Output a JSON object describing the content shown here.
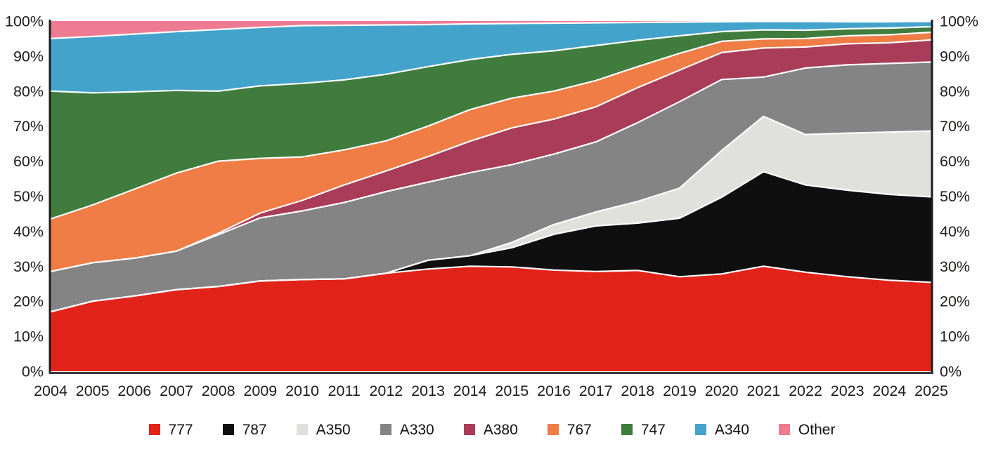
{
  "chart_data": {
    "type": "area",
    "stacked": true,
    "percent_stacked": true,
    "title": "",
    "xlabel": "",
    "ylabel": "",
    "ylim": [
      0,
      100
    ],
    "grid": false,
    "y_axis_sides": "both",
    "legend_position": "bottom",
    "axis_color": "#1d1d1b",
    "bottom_axis_color": "#3c3c3c",
    "tick_label_color": "#1d1d1b",
    "separator_color": "#ffffff",
    "background_color": "#ffffff",
    "x_labels": [
      "2004",
      "2005",
      "2006",
      "2007",
      "2008",
      "2009",
      "2010",
      "2011",
      "2012",
      "2013",
      "2014",
      "2015",
      "2016",
      "2017",
      "2018",
      "2019",
      "2020",
      "2021",
      "2022",
      "2023",
      "2024",
      "2025"
    ],
    "y_tick_labels": [
      "0%",
      "10%",
      "20%",
      "30%",
      "40%",
      "50%",
      "60%",
      "70%",
      "80%",
      "90%",
      "100%"
    ],
    "series": [
      {
        "name": "777",
        "color": "#e2231a",
        "values": [
          17.0,
          20.0,
          21.5,
          23.3,
          24.2,
          25.8,
          26.2,
          26.4,
          28.0,
          29.2,
          30.0,
          29.8,
          28.9,
          28.5,
          28.8,
          27.0,
          27.8,
          30.0,
          28.3,
          27.0,
          26.0,
          25.4
        ]
      },
      {
        "name": "787",
        "color": "#0f0f0f",
        "values": [
          0,
          0,
          0,
          0,
          0,
          0,
          0,
          0,
          0,
          2.5,
          3.0,
          5.5,
          10.2,
          13.0,
          13.5,
          16.7,
          21.9,
          27.0,
          24.9,
          24.7,
          24.5,
          24.4
        ]
      },
      {
        "name": "A350",
        "color": "#e0e0dc",
        "values": [
          0,
          0,
          0,
          0,
          0,
          0,
          0,
          0,
          0,
          0,
          0,
          1.5,
          2.8,
          4.0,
          6.2,
          8.6,
          13.3,
          15.8,
          14.4,
          16.3,
          17.8,
          18.8
        ]
      },
      {
        "name": "A330",
        "color": "#848484",
        "values": [
          11.5,
          11.0,
          10.8,
          11.0,
          14.8,
          18.0,
          19.6,
          21.8,
          23.3,
          22.3,
          23.7,
          22.2,
          20.1,
          20.0,
          22.5,
          24.7,
          20.3,
          11.2,
          19.0,
          19.5,
          19.6,
          19.7
        ]
      },
      {
        "name": "A380",
        "color": "#a93c58",
        "values": [
          0,
          0,
          0,
          0,
          0.4,
          1.4,
          3.0,
          5.0,
          5.9,
          7.3,
          9.0,
          10.5,
          10.0,
          10.0,
          10.0,
          9.0,
          7.7,
          8.3,
          6.0,
          6.0,
          5.9,
          6.3
        ]
      },
      {
        "name": "767",
        "color": "#ef7d45",
        "values": [
          15.0,
          16.5,
          19.7,
          22.3,
          20.6,
          15.6,
          12.4,
          10.0,
          8.6,
          8.7,
          9.0,
          8.5,
          8.0,
          7.5,
          6.0,
          4.8,
          3.2,
          2.6,
          2.4,
          2.3,
          2.3,
          2.2
        ]
      },
      {
        "name": "747",
        "color": "#407c3d",
        "values": [
          36.5,
          32.0,
          27.8,
          23.6,
          20.0,
          20.7,
          21.0,
          20.0,
          19.0,
          17.0,
          14.3,
          12.5,
          11.5,
          10.0,
          7.5,
          5.0,
          2.8,
          2.6,
          2.4,
          2.0,
          1.9,
          1.6
        ]
      },
      {
        "name": "A340",
        "color": "#44a3cb",
        "values": [
          15.0,
          16.1,
          16.5,
          16.8,
          17.6,
          16.7,
          16.5,
          15.6,
          14.1,
          12.0,
          10.2,
          8.8,
          7.9,
          6.5,
          5.1,
          3.9,
          2.8,
          2.4,
          2.5,
          2.0,
          1.8,
          1.5
        ]
      },
      {
        "name": "Other",
        "color": "#ee7b92",
        "values": [
          5.0,
          4.4,
          3.7,
          3.0,
          2.4,
          1.8,
          1.3,
          1.2,
          1.1,
          1.0,
          0.8,
          0.7,
          0.6,
          0.5,
          0.4,
          0.3,
          0.2,
          0.1,
          0.1,
          0.2,
          0.2,
          0.1
        ]
      }
    ]
  }
}
